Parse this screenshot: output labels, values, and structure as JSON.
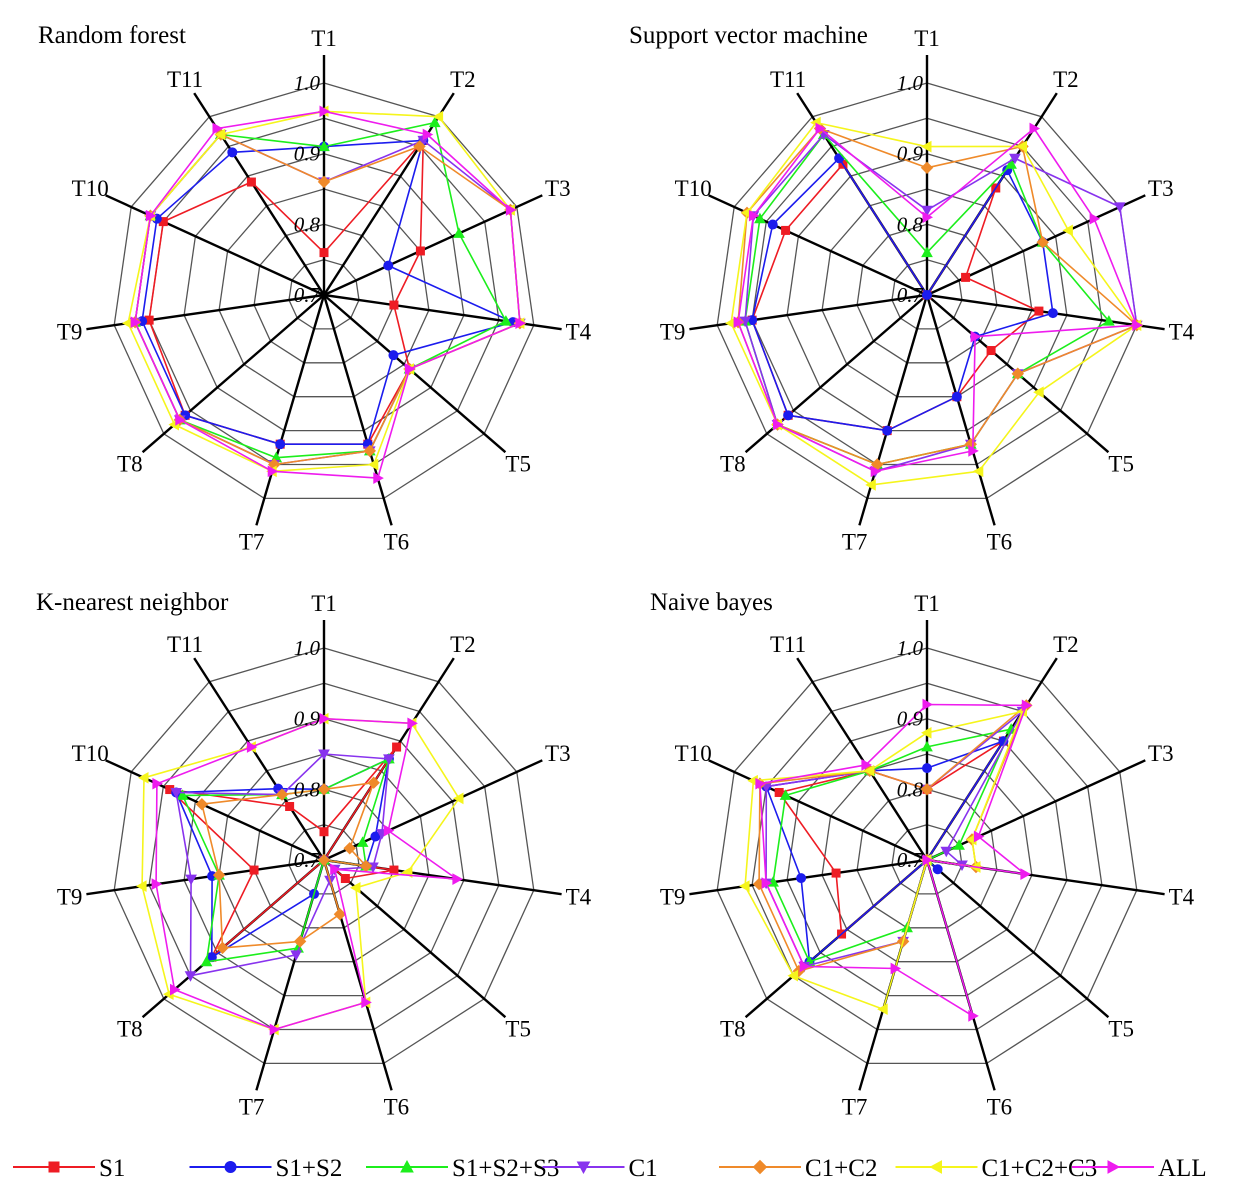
{
  "chart_data": [
    {
      "type": "radar",
      "title": "Random forest",
      "axes": [
        "T1",
        "T2",
        "T3",
        "T4",
        "T5",
        "T6",
        "T7",
        "T8",
        "T9",
        "T10",
        "T11"
      ],
      "range": [
        0.7,
        1.0
      ],
      "ticks": [
        "0.7",
        "0.8",
        "0.9",
        "1.0"
      ],
      "series": [
        {
          "name": "S1",
          "values": [
            0.76,
            0.96,
            0.85,
            0.8,
            0.86,
            0.92,
            0.92,
            0.96,
            0.95,
            0.95,
            0.89
          ]
        },
        {
          "name": "S1+S2",
          "values": [
            0.91,
            0.96,
            0.8,
            0.97,
            0.83,
            0.92,
            0.92,
            0.96,
            0.96,
            0.96,
            0.94
          ]
        },
        {
          "name": "S1+S2+S3",
          "values": [
            0.91,
            0.99,
            0.91,
            0.96,
            0.86,
            0.93,
            0.94,
            0.97,
            0.97,
            0.97,
            0.97
          ]
        },
        {
          "name": "C1",
          "values": [
            0.86,
            0.96,
            0.99,
            0.98,
            0.86,
            0.93,
            0.95,
            0.97,
            0.97,
            0.97,
            0.97
          ]
        },
        {
          "name": "C1+C2",
          "values": [
            0.86,
            0.95,
            0.99,
            0.98,
            0.86,
            0.93,
            0.95,
            0.97,
            0.97,
            0.97,
            0.97
          ]
        },
        {
          "name": "C1+C2+C3",
          "values": [
            0.96,
            1.0,
            0.99,
            0.98,
            0.86,
            0.95,
            0.96,
            0.98,
            0.98,
            0.97,
            0.97
          ]
        },
        {
          "name": "ALL",
          "values": [
            0.96,
            0.97,
            0.99,
            0.98,
            0.86,
            0.97,
            0.96,
            0.97,
            0.97,
            0.97,
            0.98
          ]
        }
      ]
    },
    {
      "type": "radar",
      "title": "Support vector machine",
      "axes": [
        "T1",
        "T2",
        "T3",
        "T4",
        "T5",
        "T6",
        "T7",
        "T8",
        "T9",
        "T10",
        "T11"
      ],
      "range": [
        0.7,
        1.0
      ],
      "ticks": [
        "0.7",
        "0.8",
        "0.9",
        "1.0"
      ],
      "series": [
        {
          "name": "S1",
          "values": [
            0.7,
            0.88,
            0.76,
            0.86,
            0.82,
            0.85,
            0.9,
            0.96,
            0.95,
            0.92,
            0.92
          ]
        },
        {
          "name": "S1+S2",
          "values": [
            0.7,
            0.91,
            0.88,
            0.88,
            0.79,
            0.85,
            0.9,
            0.96,
            0.95,
            0.94,
            0.93
          ]
        },
        {
          "name": "S1+S2+S3",
          "values": [
            0.76,
            0.92,
            0.88,
            0.96,
            0.87,
            0.92,
            0.95,
            0.98,
            0.96,
            0.96,
            0.97
          ]
        },
        {
          "name": "C1",
          "values": [
            0.82,
            0.93,
            1.0,
            1.0,
            0.87,
            0.92,
            0.96,
            0.98,
            0.96,
            0.97,
            0.97
          ]
        },
        {
          "name": "C1+C2",
          "values": [
            0.88,
            0.95,
            0.88,
            1.0,
            0.87,
            0.92,
            0.95,
            0.98,
            0.97,
            0.98,
            0.98
          ]
        },
        {
          "name": "C1+C2+C3",
          "values": [
            0.91,
            0.95,
            0.92,
            1.0,
            0.91,
            0.96,
            0.98,
            0.98,
            0.98,
            0.98,
            0.99
          ]
        },
        {
          "name": "ALL",
          "values": [
            0.81,
            0.98,
            0.96,
            1.0,
            0.79,
            0.93,
            0.96,
            0.98,
            0.97,
            0.97,
            0.98
          ]
        }
      ]
    },
    {
      "type": "radar",
      "title": "K-nearest neighbor",
      "axes": [
        "T1",
        "T2",
        "T3",
        "T4",
        "T5",
        "T6",
        "T7",
        "T8",
        "T9",
        "T10",
        "T11"
      ],
      "range": [
        0.7,
        1.0
      ],
      "ticks": [
        "0.7",
        "0.8",
        "0.9",
        "1.0"
      ],
      "series": [
        {
          "name": "S1",
          "values": [
            0.74,
            0.89,
            0.7,
            0.8,
            0.74,
            0.7,
            0.7,
            0.91,
            0.8,
            0.94,
            0.79
          ]
        },
        {
          "name": "S1+S2",
          "values": [
            0.8,
            0.87,
            0.78,
            0.76,
            0.7,
            0.7,
            0.75,
            0.91,
            0.86,
            0.93,
            0.82
          ]
        },
        {
          "name": "S1+S2+S3",
          "values": [
            0.8,
            0.87,
            0.76,
            0.76,
            0.7,
            0.7,
            0.83,
            0.92,
            0.85,
            0.92,
            0.81
          ]
        },
        {
          "name": "C1",
          "values": [
            0.85,
            0.87,
            0.79,
            0.77,
            0.72,
            0.73,
            0.84,
            0.95,
            0.89,
            0.93,
            0.81
          ]
        },
        {
          "name": "C1+C2",
          "values": [
            0.8,
            0.83,
            0.74,
            0.76,
            0.7,
            0.78,
            0.82,
            0.89,
            0.85,
            0.89,
            0.81
          ]
        },
        {
          "name": "C1+C2+C3",
          "values": [
            0.9,
            0.93,
            0.91,
            0.82,
            0.76,
            0.91,
            0.95,
            0.99,
            0.96,
            0.98,
            0.89
          ]
        },
        {
          "name": "ALL",
          "values": [
            0.9,
            0.93,
            0.8,
            0.89,
            0.72,
            0.91,
            0.95,
            0.98,
            0.94,
            0.96,
            0.89
          ]
        }
      ]
    },
    {
      "type": "radar",
      "title": "Naive bayes",
      "axes": [
        "T1",
        "T2",
        "T3",
        "T4",
        "T5",
        "T6",
        "T7",
        "T8",
        "T9",
        "T10",
        "T11"
      ],
      "range": [
        0.7,
        1.0
      ],
      "ticks": [
        "0.7",
        "0.8",
        "0.9",
        "1.0"
      ],
      "series": [
        {
          "name": "S1",
          "values": [
            0.8,
            0.9,
            0.7,
            0.7,
            0.7,
            0.7,
            0.7,
            0.86,
            0.83,
            0.93,
            0.85
          ]
        },
        {
          "name": "S1+S2",
          "values": [
            0.83,
            0.9,
            0.7,
            0.7,
            0.72,
            0.7,
            0.7,
            0.92,
            0.88,
            0.95,
            0.85
          ]
        },
        {
          "name": "S1+S2+S3",
          "values": [
            0.86,
            0.92,
            0.75,
            0.7,
            0.7,
            0.7,
            0.8,
            0.92,
            0.92,
            0.92,
            0.85
          ]
        },
        {
          "name": "C1",
          "values": [
            0.8,
            0.95,
            0.73,
            0.75,
            0.7,
            0.7,
            0.82,
            0.93,
            0.93,
            0.95,
            0.85
          ]
        },
        {
          "name": "C1+C2",
          "values": [
            0.8,
            0.96,
            0.77,
            0.77,
            0.7,
            0.7,
            0.82,
            0.94,
            0.94,
            0.96,
            0.85
          ]
        },
        {
          "name": "C1+C2+C3",
          "values": [
            0.88,
            0.95,
            0.77,
            0.77,
            0.7,
            0.7,
            0.92,
            0.95,
            0.96,
            0.97,
            0.85
          ]
        },
        {
          "name": "ALL",
          "values": [
            0.92,
            0.96,
            0.78,
            0.84,
            0.7,
            0.93,
            0.86,
            0.93,
            0.93,
            0.96,
            0.86
          ]
        }
      ]
    }
  ],
  "legend": [
    {
      "name": "S1",
      "color": "#ee1c24",
      "marker": "square"
    },
    {
      "name": "S1+S2",
      "color": "#1c1cee",
      "marker": "circle"
    },
    {
      "name": "S1+S2+S3",
      "color": "#1cee1c",
      "marker": "triangle-up"
    },
    {
      "name": "C1",
      "color": "#8833ee",
      "marker": "triangle-down"
    },
    {
      "name": "C1+C2",
      "color": "#ef8a2a",
      "marker": "diamond"
    },
    {
      "name": "C1+C2+C3",
      "color": "#f5f51c",
      "marker": "triangle-left"
    },
    {
      "name": "ALL",
      "color": "#ee1cee",
      "marker": "triangle-right"
    }
  ]
}
